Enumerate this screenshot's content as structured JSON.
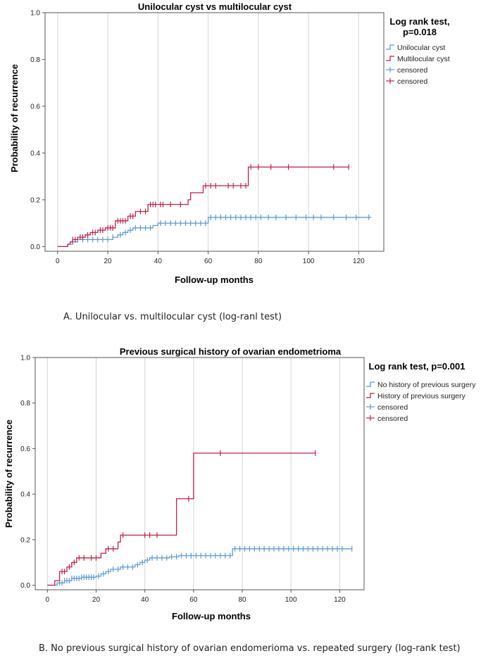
{
  "colors": {
    "blue": "#5b9bd5",
    "red": "#c0204a",
    "grid": "#d4d4d4",
    "axis": "#555555"
  },
  "chart_data": [
    {
      "type": "line",
      "title": "Unilocular cyst vs multilocular cyst",
      "xlabel": "Follow-up months",
      "ylabel": "Probability of recurrence",
      "xlim": [
        -5,
        130
      ],
      "ylim": [
        -0.02,
        1.0
      ],
      "xticks": [
        "0",
        "20",
        "40",
        "60",
        "80",
        "100",
        "120"
      ],
      "yticks": [
        "0.0",
        "0.2",
        "0.4",
        "0.6",
        "0.8",
        "1.0"
      ],
      "legend": {
        "title_line1": "Log rank test,",
        "title_line2": "p=0.018",
        "entries": [
          "Unilocular cyst",
          "Multilocular cyst",
          "censored",
          "censored"
        ]
      },
      "caption": "A. Unilocular vs. multilocular cyst (log-ranl test)",
      "series": [
        {
          "name": "Unilocular cyst",
          "color": "blue",
          "steps": [
            [
              0,
              0
            ],
            [
              4,
              0.01
            ],
            [
              6,
              0.02
            ],
            [
              8,
              0.03
            ],
            [
              22,
              0.04
            ],
            [
              24,
              0.05
            ],
            [
              26,
              0.06
            ],
            [
              28,
              0.07
            ],
            [
              30,
              0.08
            ],
            [
              38,
              0.09
            ],
            [
              40,
              0.1
            ],
            [
              60,
              0.125
            ],
            [
              125,
              0.125
            ]
          ],
          "censored": [
            6,
            8,
            10,
            12,
            14,
            16,
            18,
            20,
            22,
            25,
            27,
            29,
            31,
            33,
            35,
            37,
            41,
            43,
            45,
            47,
            49,
            51,
            53,
            55,
            57,
            59,
            61,
            63,
            65,
            67,
            69,
            71,
            73,
            75,
            77,
            79,
            81,
            84,
            87,
            91,
            95,
            99,
            102,
            105,
            110,
            115,
            119,
            124
          ]
        },
        {
          "name": "Multilocular cyst",
          "color": "red",
          "steps": [
            [
              0,
              0
            ],
            [
              4,
              0.01
            ],
            [
              5,
              0.02
            ],
            [
              6,
              0.03
            ],
            [
              8,
              0.04
            ],
            [
              11,
              0.05
            ],
            [
              13,
              0.06
            ],
            [
              16,
              0.07
            ],
            [
              19,
              0.08
            ],
            [
              23,
              0.11
            ],
            [
              28,
              0.13
            ],
            [
              31,
              0.15
            ],
            [
              36,
              0.18
            ],
            [
              52,
              0.2
            ],
            [
              53,
              0.23
            ],
            [
              58,
              0.26
            ],
            [
              66,
              0.26
            ],
            [
              76,
              0.34
            ],
            [
              116,
              0.34
            ]
          ],
          "censored": [
            6,
            7,
            9,
            10,
            12,
            14,
            15,
            17,
            18,
            20,
            21,
            22,
            24,
            25,
            26,
            27,
            29,
            30,
            33,
            35,
            37,
            38,
            39,
            41,
            42,
            45,
            49,
            59,
            61,
            63,
            68,
            70,
            73,
            75,
            77,
            80,
            85,
            92,
            110,
            116
          ]
        }
      ]
    },
    {
      "type": "line",
      "title": "Previous surgical history of ovarian endometrioma",
      "xlabel": "Follow-up months",
      "ylabel": "Probability of recurrence",
      "xlim": [
        -5,
        130
      ],
      "ylim": [
        -0.02,
        1.0
      ],
      "xticks": [
        "0",
        "20",
        "40",
        "60",
        "80",
        "100",
        "120"
      ],
      "yticks": [
        "0.0",
        "0.2",
        "0.4",
        "0.6",
        "0.8",
        "1.0"
      ],
      "legend": {
        "title_line1": "Log rank test, p=0.001",
        "title_line2": "",
        "entries": [
          "No history of previous surgery",
          "History of previous surgery",
          "censored",
          "censored"
        ]
      },
      "caption": "B. No previous surgical history of ovarian endomerioma vs. repeated surgery (log-rank test)",
      "series": [
        {
          "name": "No history of previous surgery",
          "color": "blue",
          "steps": [
            [
              0,
              0
            ],
            [
              4,
              0.01
            ],
            [
              7,
              0.02
            ],
            [
              10,
              0.03
            ],
            [
              14,
              0.035
            ],
            [
              20,
              0.04
            ],
            [
              22,
              0.05
            ],
            [
              24,
              0.06
            ],
            [
              26,
              0.07
            ],
            [
              30,
              0.08
            ],
            [
              36,
              0.09
            ],
            [
              38,
              0.1
            ],
            [
              40,
              0.11
            ],
            [
              42,
              0.12
            ],
            [
              50,
              0.125
            ],
            [
              54,
              0.13
            ],
            [
              75,
              0.13
            ],
            [
              76,
              0.16
            ],
            [
              125,
              0.16
            ]
          ],
          "censored": [
            5,
            6,
            7,
            8,
            9,
            10,
            11,
            12,
            13,
            14,
            15,
            16,
            17,
            18,
            19,
            21,
            23,
            25,
            27,
            29,
            31,
            33,
            35,
            37,
            39,
            41,
            43,
            45,
            47,
            49,
            51,
            53,
            55,
            57,
            59,
            61,
            63,
            65,
            67,
            69,
            71,
            73,
            75,
            77,
            79,
            81,
            83,
            85,
            87,
            89,
            91,
            93,
            95,
            97,
            99,
            101,
            103,
            105,
            107,
            109,
            111,
            113,
            115,
            117,
            119,
            121,
            125
          ]
        },
        {
          "name": "History of previous surgery",
          "color": "red",
          "steps": [
            [
              0,
              0
            ],
            [
              3,
              0.02
            ],
            [
              5,
              0.06
            ],
            [
              8,
              0.08
            ],
            [
              10,
              0.1
            ],
            [
              12,
              0.12
            ],
            [
              22,
              0.14
            ],
            [
              24,
              0.16
            ],
            [
              29,
              0.19
            ],
            [
              30,
              0.22
            ],
            [
              45,
              0.22
            ],
            [
              53,
              0.38
            ],
            [
              60,
              0.58
            ],
            [
              110,
              0.58
            ]
          ],
          "censored": [
            6,
            7,
            9,
            11,
            13,
            15,
            18,
            20,
            25,
            27,
            31,
            40,
            42,
            45,
            58,
            71,
            110
          ]
        }
      ]
    }
  ]
}
